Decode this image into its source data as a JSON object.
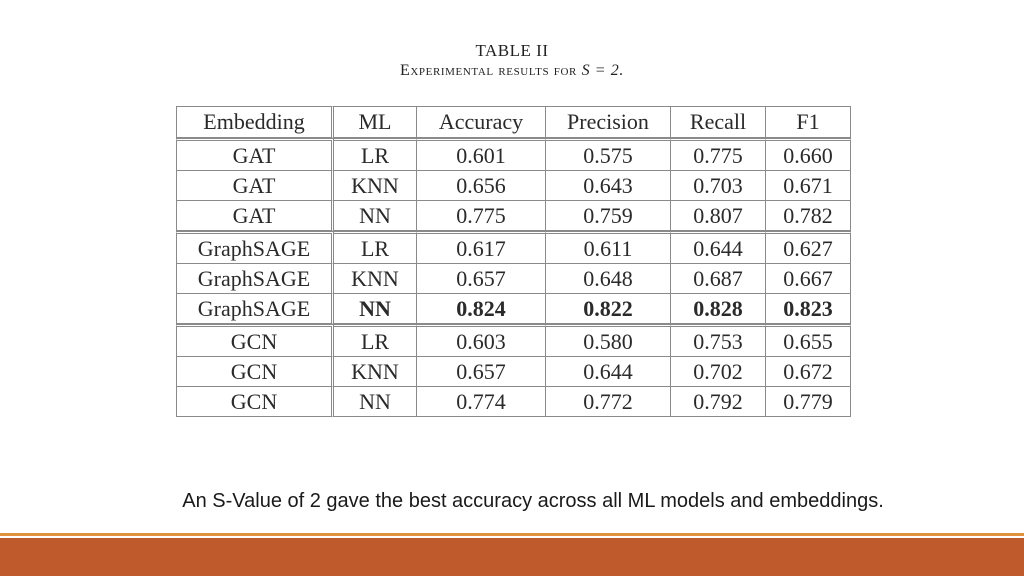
{
  "caption": {
    "label": "TABLE II",
    "title_text": "Experimental results for ",
    "title_math": "S = 2."
  },
  "table": {
    "headers": [
      "Embedding",
      "ML",
      "Accuracy",
      "Precision",
      "Recall",
      "F1"
    ],
    "groups": [
      {
        "rows": [
          {
            "embedding": "GAT",
            "ml": "LR",
            "accuracy": "0.601",
            "precision": "0.575",
            "recall": "0.775",
            "f1": "0.660",
            "bold": false
          },
          {
            "embedding": "GAT",
            "ml": "KNN",
            "accuracy": "0.656",
            "precision": "0.643",
            "recall": "0.703",
            "f1": "0.671",
            "bold": false
          },
          {
            "embedding": "GAT",
            "ml": "NN",
            "accuracy": "0.775",
            "precision": "0.759",
            "recall": "0.807",
            "f1": "0.782",
            "bold": false
          }
        ]
      },
      {
        "rows": [
          {
            "embedding": "GraphSAGE",
            "ml": "LR",
            "accuracy": "0.617",
            "precision": "0.611",
            "recall": "0.644",
            "f1": "0.627",
            "bold": false
          },
          {
            "embedding": "GraphSAGE",
            "ml": "KNN",
            "accuracy": "0.657",
            "precision": "0.648",
            "recall": "0.687",
            "f1": "0.667",
            "bold": false
          },
          {
            "embedding": "GraphSAGE",
            "ml": "NN",
            "accuracy": "0.824",
            "precision": "0.822",
            "recall": "0.828",
            "f1": "0.823",
            "bold": true
          }
        ]
      },
      {
        "rows": [
          {
            "embedding": "GCN",
            "ml": "LR",
            "accuracy": "0.603",
            "precision": "0.580",
            "recall": "0.753",
            "f1": "0.655",
            "bold": false
          },
          {
            "embedding": "GCN",
            "ml": "KNN",
            "accuracy": "0.657",
            "precision": "0.644",
            "recall": "0.702",
            "f1": "0.672",
            "bold": false
          },
          {
            "embedding": "GCN",
            "ml": "NN",
            "accuracy": "0.774",
            "precision": "0.772",
            "recall": "0.792",
            "f1": "0.779",
            "bold": false
          }
        ]
      }
    ]
  },
  "footer": {
    "text": "An S-Value of 2 gave the best accuracy across all ML models and embeddings."
  },
  "colors": {
    "accent_thin": "#e0923e",
    "accent_thick": "#bf5a2c"
  }
}
